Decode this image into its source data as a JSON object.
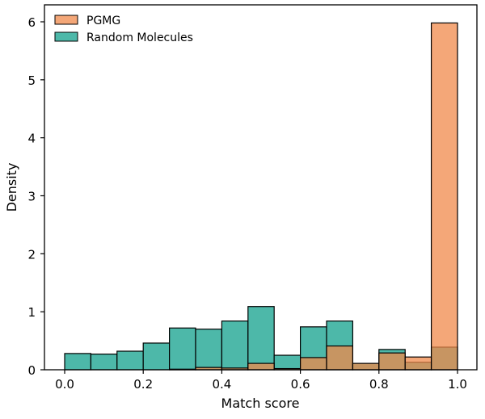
{
  "chart_data": {
    "type": "bar",
    "subtype": "overlaid-histogram",
    "xlabel": "Match score",
    "ylabel": "Density",
    "xlim": [
      -0.05,
      1.05
    ],
    "ylim": [
      0,
      6.15
    ],
    "xticks": [
      "0.0",
      "0.2",
      "0.4",
      "0.6",
      "0.8",
      "1.0"
    ],
    "yticks": [
      "0",
      "1",
      "2",
      "3",
      "4",
      "5",
      "6"
    ],
    "bin_edges": [
      0.0,
      0.0667,
      0.1333,
      0.2,
      0.2667,
      0.3333,
      0.4,
      0.4667,
      0.5333,
      0.6,
      0.6667,
      0.7333,
      0.8,
      0.8667,
      0.9333,
      1.0
    ],
    "grid": false,
    "legend_position": "top-left",
    "series": [
      {
        "name": "PGMG",
        "color": "#f08a4b",
        "values": [
          0,
          0,
          0,
          0,
          0.01,
          0.04,
          0.03,
          0.11,
          0.02,
          0.21,
          0.41,
          0.11,
          0.29,
          0.22,
          5.98
        ]
      },
      {
        "name": "Random Molecules",
        "color": "#4db8a9",
        "values": [
          0.28,
          0.27,
          0.32,
          0.46,
          0.72,
          0.7,
          0.84,
          1.09,
          0.25,
          0.74,
          0.84,
          0.11,
          0.35,
          0.13,
          0.39
        ]
      }
    ]
  }
}
